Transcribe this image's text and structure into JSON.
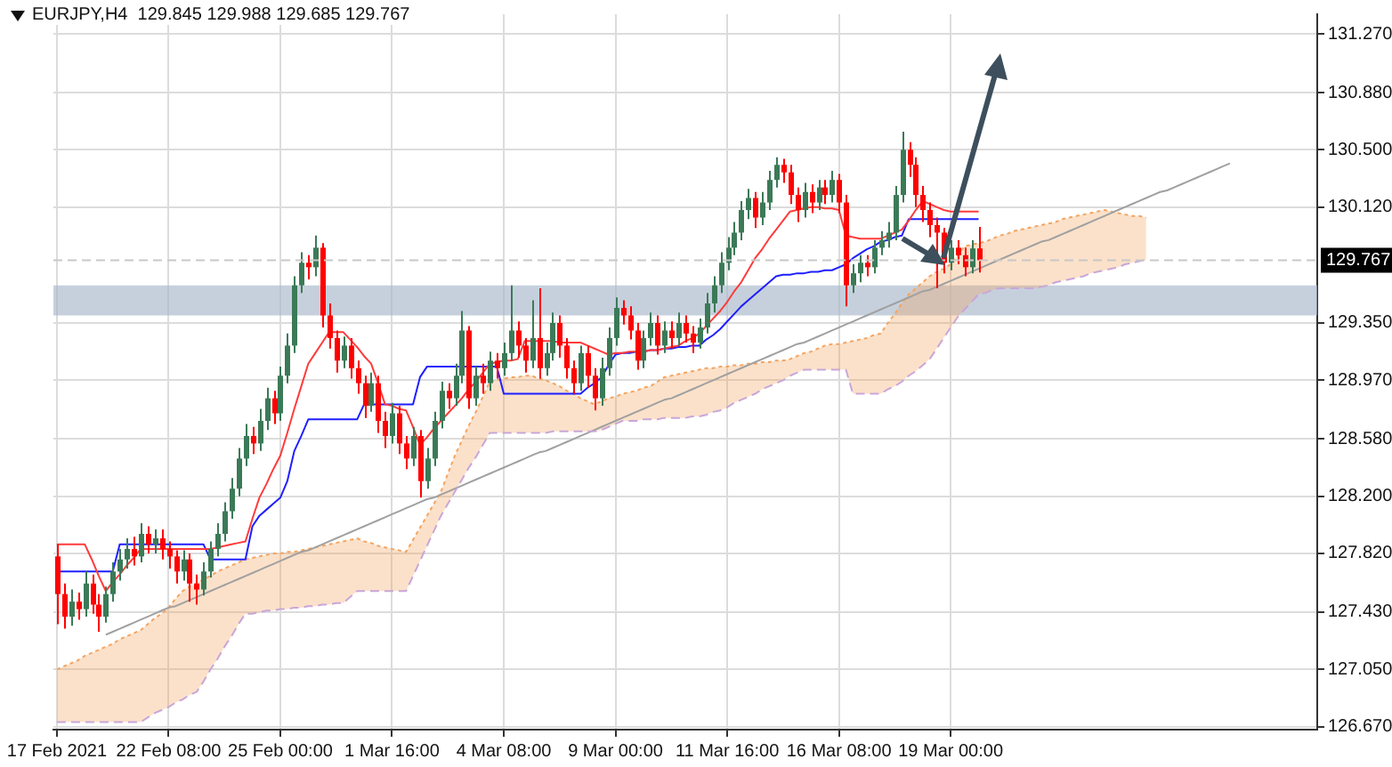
{
  "chart_data": {
    "type": "candlestick",
    "title": "EURJPY,H4  129.845 129.988 129.685 129.767",
    "categories": [
      "17 Feb 2021",
      null,
      null,
      null,
      null,
      null,
      null,
      null,
      null,
      null,
      null,
      null,
      null,
      null,
      null,
      null,
      "22 Feb 08:00",
      null,
      null,
      null,
      null,
      null,
      null,
      null,
      null,
      null,
      null,
      null,
      null,
      null,
      null,
      null,
      "25 Feb 00:00",
      null,
      null,
      null,
      null,
      null,
      null,
      null,
      null,
      null,
      null,
      null,
      null,
      null,
      null,
      null,
      "1 Mar 16:00",
      null,
      null,
      null,
      null,
      null,
      null,
      null,
      null,
      null,
      null,
      null,
      null,
      null,
      null,
      null,
      "4 Mar 08:00",
      null,
      null,
      null,
      null,
      null,
      null,
      null,
      null,
      null,
      null,
      null,
      null,
      null,
      null,
      null,
      "9 Mar 00:00",
      null,
      null,
      null,
      null,
      null,
      null,
      null,
      null,
      null,
      null,
      null,
      null,
      null,
      null,
      null,
      "11 Mar 16:00",
      null,
      null,
      null,
      null,
      null,
      null,
      null,
      null,
      null,
      null,
      null,
      null,
      null,
      null,
      null,
      "16 Mar 08:00",
      null,
      null,
      null,
      null,
      null,
      null,
      null,
      null,
      null,
      null,
      null,
      null,
      null,
      null,
      null,
      "19 Mar 00:00",
      null,
      null,
      null,
      null,
      null,
      null,
      null,
      null,
      null,
      null,
      null,
      null,
      null,
      null,
      null,
      null,
      null,
      null,
      null,
      null,
      null,
      null,
      null,
      null,
      null,
      null,
      null,
      null,
      null,
      null,
      null,
      null,
      null,
      null,
      null,
      null,
      null,
      null,
      null,
      null,
      null,
      null,
      null,
      null,
      null,
      null,
      null,
      null,
      null,
      null,
      null,
      null
    ],
    "ylim": [
      126.65,
      131.4
    ],
    "yticks": [
      {
        "value": 131.27,
        "label": "131.270"
      },
      {
        "value": 130.88,
        "label": "130.880"
      },
      {
        "value": 130.5,
        "label": "130.500"
      },
      {
        "value": 130.12,
        "label": "130.120"
      },
      {
        "value": 129.35,
        "label": "129.350"
      },
      {
        "value": 128.97,
        "label": "128.970"
      },
      {
        "value": 128.58,
        "label": "128.580"
      },
      {
        "value": 128.2,
        "label": "128.200"
      },
      {
        "value": 127.82,
        "label": "127.820"
      },
      {
        "value": 127.43,
        "label": "127.430"
      },
      {
        "value": 127.05,
        "label": "127.050"
      },
      {
        "value": 126.67,
        "label": "126.670"
      }
    ],
    "grid": true,
    "legend": false,
    "bands": [
      {
        "axis": "y",
        "from": 129.4,
        "to": 129.6,
        "color": "#a9b9cc"
      }
    ],
    "ref_lines": [
      {
        "axis": "y",
        "value": 129.767,
        "label": "129.767",
        "color": "#c8c8c8",
        "line_style": "dashed"
      }
    ],
    "series": [
      {
        "type": "line",
        "color": "#c9a6d8",
        "line_style": "dashed",
        "values": [
          126.7,
          126.7,
          126.7,
          126.7,
          126.7,
          126.7,
          126.7,
          126.7,
          126.7,
          126.7,
          126.7,
          126.7,
          126.7,
          126.73,
          126.76,
          126.78,
          126.8,
          126.83,
          126.85,
          126.88,
          126.9,
          126.97,
          127.05,
          127.12,
          127.2,
          127.27,
          127.35,
          127.42,
          127.42,
          127.43,
          127.44,
          127.44,
          127.45,
          127.45,
          127.46,
          127.46,
          127.47,
          127.47,
          127.48,
          127.48,
          127.49,
          127.49,
          127.53,
          127.57,
          127.57,
          127.57,
          127.57,
          127.57,
          127.57,
          127.57,
          127.57,
          127.67,
          127.77,
          127.87,
          127.97,
          128.07,
          128.15,
          128.23,
          128.31,
          128.39,
          128.46,
          128.54,
          128.62,
          128.62,
          128.62,
          128.62,
          128.62,
          128.62,
          128.62,
          128.62,
          128.62,
          128.63,
          128.63,
          128.63,
          128.63,
          128.63,
          128.63,
          128.63,
          128.64,
          128.66,
          128.68,
          128.7,
          128.7,
          128.7,
          128.71,
          128.71,
          128.71,
          128.72,
          128.72,
          128.72,
          128.72,
          128.73,
          128.73,
          128.74,
          128.76,
          128.77,
          128.79,
          128.82,
          128.84,
          128.86,
          128.88,
          128.91,
          128.93,
          128.95,
          128.97,
          129.0,
          129.02,
          129.04,
          129.04,
          129.04,
          129.04,
          129.04,
          129.04,
          129.04,
          128.88,
          128.88,
          128.88,
          128.88,
          128.88,
          128.91,
          128.93,
          128.96,
          129.0,
          129.03,
          129.07,
          129.11,
          129.18,
          129.25,
          129.32,
          129.39,
          129.44,
          129.49,
          129.54,
          129.55,
          129.57,
          129.58,
          129.58,
          129.58,
          129.58,
          129.58,
          129.58,
          129.59,
          129.6,
          129.62,
          129.63,
          129.64,
          129.65,
          129.66,
          129.68,
          129.69,
          129.7,
          129.71,
          129.72,
          129.74,
          129.75,
          129.76,
          129.77,
          null,
          null,
          null,
          null,
          null,
          null,
          null,
          null,
          null,
          null,
          null,
          null,
          null,
          null,
          null,
          null,
          null,
          null,
          null,
          null,
          null,
          null,
          null,
          null
        ]
      },
      {
        "type": "area",
        "color": "#f4a460",
        "line_style": "dotted",
        "values": [
          127.05,
          127.07,
          127.09,
          127.11,
          127.14,
          127.16,
          127.18,
          127.2,
          127.22,
          127.25,
          127.27,
          127.29,
          127.31,
          127.35,
          127.39,
          127.42,
          127.46,
          127.52,
          127.57,
          127.6,
          127.62,
          127.65,
          127.67,
          127.7,
          127.72,
          127.74,
          127.76,
          127.78,
          127.79,
          127.8,
          127.81,
          127.82,
          127.82,
          127.83,
          127.83,
          127.84,
          127.85,
          127.86,
          127.87,
          127.88,
          127.89,
          127.9,
          127.91,
          127.92,
          127.9,
          127.89,
          127.87,
          127.86,
          127.85,
          127.84,
          127.83,
          127.91,
          127.99,
          128.07,
          128.15,
          128.23,
          128.35,
          128.47,
          128.57,
          128.67,
          128.76,
          128.86,
          128.96,
          128.97,
          128.98,
          128.99,
          128.99,
          129.0,
          129.0,
          128.98,
          128.97,
          128.95,
          128.93,
          128.9,
          128.88,
          128.85,
          128.83,
          128.81,
          128.83,
          128.85,
          128.86,
          128.88,
          128.89,
          128.9,
          128.92,
          128.93,
          128.96,
          128.99,
          129.0,
          129.01,
          129.02,
          129.03,
          129.04,
          129.05,
          129.05,
          129.06,
          129.06,
          129.07,
          129.07,
          129.08,
          129.08,
          129.09,
          129.09,
          129.1,
          129.1,
          129.11,
          129.13,
          129.15,
          129.16,
          129.18,
          129.2,
          129.21,
          129.21,
          129.22,
          129.23,
          129.24,
          129.25,
          129.27,
          129.28,
          129.35,
          129.41,
          129.48,
          129.54,
          129.58,
          129.62,
          129.66,
          129.69,
          129.71,
          129.74,
          129.8,
          129.86,
          129.87,
          129.88,
          129.89,
          129.91,
          129.93,
          129.94,
          129.96,
          129.97,
          129.98,
          129.99,
          130.0,
          130.01,
          130.02,
          130.04,
          130.05,
          130.06,
          130.07,
          130.08,
          130.09,
          130.1,
          130.09,
          130.08,
          130.07,
          130.06,
          130.06,
          130.05,
          null,
          null,
          null,
          null,
          null,
          null,
          null,
          null,
          null,
          null,
          null,
          null,
          null,
          null,
          null,
          null,
          null,
          null,
          null,
          null,
          null,
          null,
          null,
          null
        ]
      },
      {
        "type": "line",
        "color": "#a0a0a0",
        "values": [
          null,
          null,
          null,
          null,
          null,
          null,
          null,
          127.28,
          127.3,
          127.32,
          127.34,
          127.36,
          127.38,
          127.4,
          127.42,
          127.44,
          127.46,
          127.47,
          127.49,
          127.51,
          127.53,
          127.55,
          127.57,
          127.59,
          127.61,
          127.63,
          127.65,
          127.67,
          127.69,
          127.71,
          127.73,
          127.75,
          127.77,
          127.79,
          127.81,
          127.83,
          127.84,
          127.86,
          127.88,
          127.9,
          127.92,
          127.94,
          127.96,
          127.98,
          128.0,
          128.02,
          128.04,
          128.06,
          128.08,
          128.1,
          128.12,
          128.14,
          128.16,
          128.18,
          128.19,
          128.21,
          128.23,
          128.25,
          128.27,
          128.29,
          128.31,
          128.33,
          128.35,
          128.37,
          128.39,
          128.41,
          128.43,
          128.45,
          128.47,
          128.49,
          128.5,
          128.52,
          128.54,
          128.56,
          128.58,
          128.6,
          128.62,
          128.64,
          128.66,
          128.68,
          128.7,
          128.72,
          128.74,
          128.76,
          128.78,
          128.8,
          128.82,
          128.84,
          128.85,
          128.87,
          128.89,
          128.91,
          128.93,
          128.95,
          128.97,
          128.99,
          129.01,
          129.03,
          129.05,
          129.07,
          129.09,
          129.11,
          129.13,
          129.15,
          129.17,
          129.19,
          129.21,
          129.22,
          129.24,
          129.26,
          129.28,
          129.3,
          129.32,
          129.34,
          129.36,
          129.38,
          129.4,
          129.42,
          129.44,
          129.46,
          129.48,
          129.5,
          129.52,
          129.54,
          129.56,
          129.57,
          129.59,
          129.61,
          129.63,
          129.65,
          129.67,
          129.69,
          129.71,
          129.73,
          129.75,
          129.77,
          129.79,
          129.81,
          129.83,
          129.85,
          129.87,
          129.89,
          129.9,
          129.92,
          129.94,
          129.96,
          129.98,
          130.0,
          130.02,
          130.04,
          130.06,
          130.08,
          130.1,
          130.12,
          130.14,
          130.16,
          130.18,
          130.2,
          130.22,
          130.23,
          130.25,
          130.27,
          130.29,
          130.31,
          130.33,
          130.35,
          130.37,
          130.39,
          130.41,
          null,
          null,
          null,
          null,
          null,
          null,
          null,
          null,
          null,
          null,
          null,
          null
        ]
      },
      {
        "type": "line",
        "color": "#ff3b3b",
        "values": [
          127.88,
          127.88,
          127.88,
          127.88,
          127.88,
          127.78,
          127.67,
          127.57,
          127.63,
          127.68,
          127.74,
          127.79,
          127.85,
          127.85,
          127.85,
          127.85,
          127.85,
          127.85,
          127.85,
          127.85,
          127.85,
          127.85,
          127.85,
          127.86,
          127.87,
          127.88,
          127.89,
          127.9,
          128.05,
          128.19,
          128.28,
          128.38,
          128.47,
          128.62,
          128.78,
          128.93,
          129.08,
          129.15,
          129.22,
          129.29,
          129.29,
          129.29,
          129.24,
          129.19,
          129.13,
          129.08,
          128.95,
          128.81,
          128.8,
          128.78,
          128.77,
          128.66,
          128.54,
          128.59,
          128.65,
          128.7,
          128.75,
          128.8,
          128.85,
          128.91,
          128.96,
          129.02,
          129.08,
          129.09,
          129.1,
          129.1,
          129.11,
          129.23,
          129.23,
          129.23,
          129.23,
          129.23,
          129.22,
          129.22,
          129.22,
          129.22,
          129.2,
          129.18,
          129.16,
          129.14,
          129.15,
          129.15,
          129.16,
          129.16,
          129.16,
          129.17,
          129.17,
          129.18,
          129.19,
          129.2,
          129.23,
          129.25,
          129.28,
          129.33,
          129.38,
          129.43,
          129.49,
          129.56,
          129.62,
          129.7,
          129.78,
          129.84,
          129.91,
          129.97,
          130.03,
          130.09,
          130.1,
          130.11,
          130.12,
          130.12,
          130.11,
          130.11,
          130.1,
          129.93,
          129.92,
          129.91,
          129.91,
          129.91,
          129.91,
          129.93,
          129.95,
          129.97,
          130.03,
          130.1,
          130.16,
          130.14,
          130.12,
          130.1,
          130.09,
          130.09,
          130.09,
          130.09,
          130.09,
          null,
          null,
          null,
          null,
          null,
          null,
          null,
          null,
          null,
          null,
          null,
          null,
          null,
          null,
          null,
          null,
          null,
          null,
          null,
          null,
          null,
          null,
          null,
          null,
          null,
          null,
          null,
          null,
          null,
          null,
          null,
          null,
          null,
          null,
          null,
          null,
          null,
          null,
          null,
          null,
          null,
          null,
          null,
          null,
          null,
          null,
          null,
          null
        ]
      },
      {
        "type": "line",
        "color": "#1f1fff",
        "values": [
          127.7,
          127.7,
          127.7,
          127.7,
          127.7,
          127.7,
          127.7,
          127.7,
          127.7,
          127.88,
          127.88,
          127.88,
          127.88,
          127.88,
          127.88,
          127.88,
          127.88,
          127.88,
          127.88,
          127.88,
          127.88,
          127.88,
          127.78,
          127.78,
          127.78,
          127.78,
          127.78,
          127.78,
          128.0,
          128.07,
          128.11,
          128.15,
          128.19,
          128.3,
          128.5,
          128.6,
          128.71,
          128.71,
          128.71,
          128.71,
          128.71,
          128.71,
          128.71,
          128.71,
          128.81,
          128.81,
          128.81,
          128.81,
          128.81,
          128.81,
          128.81,
          128.81,
          128.99,
          129.06,
          129.06,
          129.06,
          129.06,
          129.06,
          129.06,
          129.06,
          129.06,
          129.06,
          129.06,
          129.06,
          128.88,
          128.88,
          128.88,
          128.88,
          128.88,
          128.88,
          128.88,
          128.88,
          128.88,
          128.88,
          128.88,
          128.88,
          128.92,
          128.95,
          128.99,
          129.07,
          129.14,
          129.15,
          129.15,
          129.16,
          129.16,
          129.17,
          129.17,
          129.18,
          129.18,
          129.19,
          129.19,
          129.2,
          129.2,
          129.24,
          129.27,
          129.31,
          129.36,
          129.41,
          129.46,
          129.5,
          129.54,
          129.58,
          129.62,
          129.66,
          129.67,
          129.67,
          129.68,
          129.68,
          129.69,
          129.69,
          129.7,
          129.7,
          129.72,
          129.74,
          129.78,
          129.81,
          129.84,
          129.86,
          129.89,
          129.9,
          129.92,
          129.93,
          130.04,
          130.04,
          130.04,
          130.04,
          130.04,
          130.04,
          130.04,
          130.04,
          130.04,
          130.04,
          130.04,
          null,
          null,
          null,
          null,
          null,
          null,
          null,
          null,
          null,
          null,
          null,
          null,
          null,
          null,
          null,
          null,
          null,
          null,
          null,
          null,
          null,
          null,
          null,
          null,
          null,
          null,
          null,
          null,
          null,
          null,
          null,
          null,
          null,
          null,
          null,
          null,
          null,
          null,
          null,
          null,
          null,
          null,
          null,
          null,
          null,
          null,
          null,
          null
        ]
      },
      {
        "color": "#3b7a57",
        "ohlc": [
          null,
          null,
          [
            127.4,
            127.58,
            127.34,
            127.5
          ],
          null,
          [
            127.45,
            127.7,
            127.4,
            127.62
          ],
          null,
          null,
          [
            127.4,
            127.6,
            127.36,
            127.55
          ],
          [
            127.55,
            127.76,
            127.5,
            127.7
          ],
          [
            127.7,
            127.85,
            127.64,
            127.78
          ],
          [
            127.78,
            127.92,
            127.72,
            127.85
          ],
          null,
          [
            127.8,
            128.02,
            127.76,
            127.95
          ],
          null,
          [
            127.88,
            127.98,
            127.82,
            127.92
          ],
          null,
          null,
          null,
          [
            127.7,
            127.84,
            127.64,
            127.78
          ],
          null,
          null,
          [
            127.58,
            127.76,
            127.54,
            127.7
          ],
          [
            127.7,
            127.9,
            127.66,
            127.85
          ],
          [
            127.85,
            128.02,
            127.8,
            127.95
          ],
          [
            127.95,
            128.16,
            127.9,
            128.1
          ],
          [
            128.1,
            128.32,
            128.05,
            128.25
          ],
          [
            128.25,
            128.52,
            128.2,
            128.45
          ],
          [
            128.45,
            128.68,
            128.4,
            128.6
          ],
          null,
          [
            128.55,
            128.78,
            128.5,
            128.7
          ],
          [
            128.7,
            128.92,
            128.64,
            128.85
          ],
          null,
          [
            128.75,
            129.06,
            128.7,
            129.0
          ],
          [
            129.0,
            129.28,
            128.95,
            129.2
          ],
          [
            129.2,
            129.66,
            129.15,
            129.6
          ],
          [
            129.6,
            129.82,
            129.55,
            129.75
          ],
          null,
          [
            129.72,
            129.93,
            129.66,
            129.85
          ],
          null,
          null,
          null,
          [
            129.1,
            129.26,
            129.05,
            129.2
          ],
          null,
          null,
          null,
          [
            128.8,
            129.02,
            128.76,
            128.95
          ],
          null,
          null,
          [
            128.6,
            128.82,
            128.55,
            128.75
          ],
          null,
          null,
          [
            128.45,
            128.66,
            128.4,
            128.6
          ],
          null,
          [
            128.3,
            128.52,
            128.25,
            128.45
          ],
          [
            128.45,
            128.76,
            128.4,
            128.7
          ],
          [
            128.7,
            128.96,
            128.65,
            128.9
          ],
          null,
          [
            128.85,
            129.08,
            128.8,
            129.0
          ],
          [
            129.0,
            129.43,
            128.95,
            129.3
          ],
          null,
          [
            128.85,
            129.06,
            128.8,
            129.0
          ],
          null,
          [
            128.95,
            129.16,
            128.9,
            129.1
          ],
          null,
          [
            129.05,
            129.22,
            129.0,
            129.15
          ],
          [
            129.15,
            129.6,
            129.1,
            129.3
          ],
          null,
          null,
          [
            129.1,
            129.5,
            129.05,
            129.25
          ],
          null,
          [
            129.05,
            129.22,
            129.0,
            129.15
          ],
          [
            129.15,
            129.42,
            129.1,
            129.35
          ],
          null,
          null,
          null,
          [
            128.95,
            129.2,
            128.9,
            129.15
          ],
          null,
          null,
          [
            128.85,
            129.12,
            128.8,
            129.05
          ],
          [
            129.05,
            129.32,
            129.0,
            129.25
          ],
          [
            129.25,
            129.52,
            129.2,
            129.45
          ],
          null,
          null,
          null,
          [
            129.1,
            129.3,
            129.05,
            129.25
          ],
          [
            129.25,
            129.42,
            129.2,
            129.35
          ],
          null,
          [
            129.2,
            129.36,
            129.15,
            129.3
          ],
          null,
          [
            129.25,
            129.42,
            129.2,
            129.35
          ],
          null,
          null,
          [
            129.22,
            129.38,
            129.18,
            129.32
          ],
          [
            129.32,
            129.55,
            129.28,
            129.48
          ],
          [
            129.48,
            129.66,
            129.42,
            129.6
          ],
          [
            129.6,
            129.82,
            129.55,
            129.75
          ],
          [
            129.75,
            129.92,
            129.7,
            129.85
          ],
          [
            129.85,
            130.02,
            129.8,
            129.95
          ],
          [
            129.95,
            130.16,
            129.9,
            130.1
          ],
          [
            130.1,
            130.24,
            130.04,
            130.18
          ],
          null,
          [
            130.05,
            130.22,
            130.0,
            130.15
          ],
          [
            130.15,
            130.36,
            130.1,
            130.3
          ],
          [
            130.3,
            130.45,
            130.25,
            130.4
          ],
          null,
          null,
          null,
          [
            130.1,
            130.28,
            130.05,
            130.22
          ],
          null,
          [
            130.15,
            130.3,
            130.1,
            130.25
          ],
          null,
          [
            130.2,
            130.36,
            130.15,
            130.3
          ],
          null,
          null,
          [
            129.6,
            129.74,
            129.55,
            129.68
          ],
          [
            129.68,
            129.8,
            129.62,
            129.75
          ],
          null,
          [
            129.72,
            129.9,
            129.68,
            129.85
          ],
          [
            129.85,
            129.96,
            129.8,
            129.9
          ],
          [
            129.9,
            130.02,
            129.85,
            129.95
          ],
          [
            129.95,
            130.26,
            129.9,
            130.2
          ],
          [
            130.2,
            130.62,
            130.15,
            130.5
          ],
          null,
          null,
          null,
          null,
          null,
          null,
          [
            129.75,
            129.9,
            129.7,
            129.85
          ],
          null,
          null,
          [
            129.72,
            129.9,
            129.68,
            129.845
          ],
          null,
          null,
          null,
          null,
          null,
          null,
          null,
          null,
          null,
          null,
          null,
          null,
          null,
          null,
          null,
          null,
          null,
          null,
          null,
          null,
          null,
          null,
          null,
          null,
          null,
          null,
          null,
          null,
          null,
          null,
          null,
          null,
          null,
          null,
          null,
          null,
          null,
          null,
          null,
          null,
          null,
          null,
          null,
          null,
          null,
          null,
          null,
          null,
          null
        ]
      },
      {
        "color": "#ff0000",
        "ohlc": [
          [
            127.8,
            127.88,
            127.35,
            127.55
          ],
          [
            127.55,
            127.62,
            127.32,
            127.4
          ],
          null,
          [
            127.5,
            127.56,
            127.38,
            127.45
          ],
          null,
          [
            127.62,
            127.68,
            127.42,
            127.48
          ],
          [
            127.48,
            127.55,
            127.3,
            127.4
          ],
          null,
          null,
          null,
          null,
          [
            127.85,
            127.93,
            127.74,
            127.8
          ],
          null,
          [
            127.95,
            128.0,
            127.82,
            127.88
          ],
          null,
          [
            127.92,
            127.98,
            127.78,
            127.85
          ],
          [
            127.85,
            127.9,
            127.72,
            127.8
          ],
          [
            127.8,
            127.84,
            127.62,
            127.7
          ],
          null,
          [
            127.78,
            127.82,
            127.5,
            127.62
          ],
          [
            127.62,
            127.68,
            127.48,
            127.58
          ],
          null,
          null,
          null,
          null,
          null,
          null,
          null,
          [
            128.6,
            128.66,
            128.48,
            128.55
          ],
          null,
          null,
          [
            128.85,
            128.9,
            128.68,
            128.75
          ],
          null,
          null,
          null,
          null,
          [
            129.75,
            129.8,
            129.64,
            129.72
          ],
          null,
          [
            129.85,
            129.88,
            129.32,
            129.4
          ],
          [
            129.4,
            129.48,
            129.18,
            129.25
          ],
          [
            129.25,
            129.3,
            129.02,
            129.1
          ],
          null,
          [
            129.2,
            129.25,
            128.98,
            129.05
          ],
          [
            129.05,
            129.1,
            128.88,
            128.95
          ],
          [
            128.95,
            129.0,
            128.72,
            128.8
          ],
          null,
          [
            128.95,
            129.0,
            128.62,
            128.7
          ],
          [
            128.7,
            128.76,
            128.52,
            128.6
          ],
          null,
          [
            128.75,
            128.8,
            128.48,
            128.55
          ],
          [
            128.55,
            128.6,
            128.38,
            128.45
          ],
          null,
          [
            128.6,
            128.64,
            128.19,
            128.3
          ],
          null,
          null,
          null,
          [
            128.9,
            128.95,
            128.78,
            128.85
          ],
          null,
          null,
          [
            129.3,
            129.33,
            128.78,
            128.85
          ],
          null,
          [
            129.0,
            129.08,
            128.88,
            128.95
          ],
          null,
          [
            129.1,
            129.15,
            128.98,
            129.05
          ],
          null,
          null,
          [
            129.3,
            129.36,
            129.12,
            129.2
          ],
          [
            129.2,
            129.25,
            129.02,
            129.1
          ],
          null,
          [
            129.25,
            129.58,
            128.98,
            129.05
          ],
          null,
          null,
          [
            129.35,
            129.4,
            129.12,
            129.2
          ],
          [
            129.2,
            129.25,
            128.98,
            129.05
          ],
          [
            129.05,
            129.1,
            128.88,
            128.95
          ],
          null,
          [
            129.15,
            129.2,
            128.92,
            129.0
          ],
          [
            129.0,
            129.05,
            128.77,
            128.85
          ],
          null,
          null,
          null,
          [
            129.45,
            129.5,
            129.34,
            129.4
          ],
          [
            129.4,
            129.46,
            129.24,
            129.3
          ],
          [
            129.3,
            129.35,
            129.04,
            129.1
          ],
          null,
          null,
          [
            129.35,
            129.4,
            129.14,
            129.2
          ],
          null,
          [
            129.3,
            129.36,
            129.18,
            129.25
          ],
          null,
          [
            129.35,
            129.4,
            129.22,
            129.28
          ],
          [
            129.28,
            129.33,
            129.15,
            129.22
          ],
          null,
          null,
          null,
          null,
          null,
          null,
          null,
          null,
          [
            130.18,
            130.22,
            129.98,
            130.05
          ],
          null,
          null,
          null,
          [
            130.4,
            130.44,
            130.28,
            130.35
          ],
          [
            130.35,
            130.4,
            130.14,
            130.2
          ],
          [
            130.2,
            130.25,
            130.02,
            130.1
          ],
          null,
          [
            130.22,
            130.27,
            130.08,
            130.15
          ],
          null,
          [
            130.25,
            130.3,
            130.14,
            130.2
          ],
          null,
          [
            130.3,
            130.34,
            130.08,
            130.15
          ],
          [
            130.15,
            130.2,
            129.46,
            129.6
          ],
          null,
          null,
          [
            129.75,
            129.8,
            129.66,
            129.72
          ],
          null,
          null,
          null,
          null,
          null,
          [
            130.5,
            130.55,
            130.32,
            130.4
          ],
          [
            130.4,
            130.45,
            130.12,
            130.2
          ],
          [
            130.2,
            130.26,
            130.02,
            130.1
          ],
          [
            130.1,
            130.15,
            129.92,
            130.0
          ],
          [
            130.0,
            130.05,
            129.58,
            129.95
          ],
          [
            129.95,
            129.98,
            129.68,
            129.75
          ],
          null,
          [
            129.85,
            129.9,
            129.74,
            129.8
          ],
          [
            129.8,
            129.85,
            129.66,
            129.72
          ],
          null,
          [
            129.845,
            129.988,
            129.685,
            129.767
          ],
          null,
          null,
          null,
          null,
          null,
          null,
          null,
          null,
          null,
          null,
          null,
          null,
          null,
          null,
          null,
          null,
          null,
          null,
          null,
          null,
          null,
          null,
          null,
          null,
          null,
          null,
          null,
          null,
          null,
          null,
          null,
          null,
          null,
          null,
          null,
          null,
          null,
          null,
          null,
          null,
          null,
          null,
          null,
          null,
          null,
          null,
          null,
          null
        ]
      }
    ]
  }
}
